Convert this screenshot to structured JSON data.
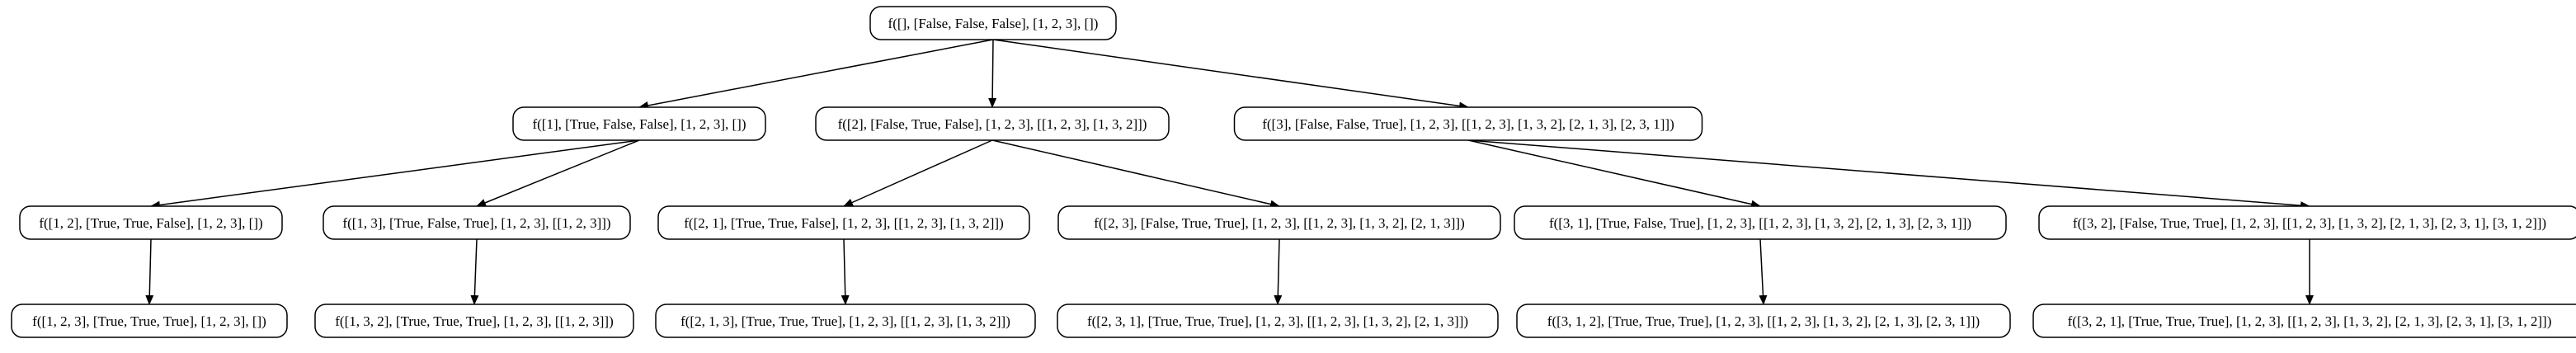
{
  "diagram": {
    "type": "tree",
    "root": "n0",
    "nodes": [
      {
        "id": "n0",
        "label": "f([], [False, False, False], [1, 2, 3], [])"
      },
      {
        "id": "n1",
        "label": "f([1], [True, False, False], [1, 2, 3], [])"
      },
      {
        "id": "n2",
        "label": "f([2], [False, True, False], [1, 2, 3], [[1, 2, 3], [1, 3, 2]])"
      },
      {
        "id": "n3",
        "label": "f([3], [False, False, True], [1, 2, 3], [[1, 2, 3], [1, 3, 2], [2, 1, 3], [2, 3, 1]])"
      },
      {
        "id": "n4",
        "label": "f([1, 2], [True, True, False], [1, 2, 3], [])"
      },
      {
        "id": "n5",
        "label": "f([1, 3], [True, False, True], [1, 2, 3], [[1, 2, 3]])"
      },
      {
        "id": "n6",
        "label": "f([2, 1], [True, True, False], [1, 2, 3], [[1, 2, 3], [1, 3, 2]])"
      },
      {
        "id": "n7",
        "label": "f([2, 3], [False, True, True], [1, 2, 3], [[1, 2, 3], [1, 3, 2], [2, 1, 3]])"
      },
      {
        "id": "n8",
        "label": "f([3, 1], [True, False, True], [1, 2, 3], [[1, 2, 3], [1, 3, 2], [2, 1, 3], [2, 3, 1]])"
      },
      {
        "id": "n9",
        "label": "f([3, 2], [False, True, True], [1, 2, 3], [[1, 2, 3], [1, 3, 2], [2, 1, 3], [2, 3, 1], [3, 1, 2]])"
      },
      {
        "id": "n10",
        "label": "f([1, 2, 3], [True, True, True], [1, 2, 3], [])"
      },
      {
        "id": "n11",
        "label": "f([1, 3, 2], [True, True, True], [1, 2, 3], [[1, 2, 3]])"
      },
      {
        "id": "n12",
        "label": "f([2, 1, 3], [True, True, True], [1, 2, 3], [[1, 2, 3], [1, 3, 2]])"
      },
      {
        "id": "n13",
        "label": "f([2, 3, 1], [True, True, True], [1, 2, 3], [[1, 2, 3], [1, 3, 2], [2, 1, 3]])"
      },
      {
        "id": "n14",
        "label": "f([3, 1, 2], [True, True, True], [1, 2, 3], [[1, 2, 3], [1, 3, 2], [2, 1, 3], [2, 3, 1]])"
      },
      {
        "id": "n15",
        "label": "f([3, 2, 1], [True, True, True], [1, 2, 3], [[1, 2, 3], [1, 3, 2], [2, 1, 3], [2, 3, 1], [3, 1, 2]])"
      }
    ],
    "edges": [
      [
        "n0",
        "n1"
      ],
      [
        "n0",
        "n2"
      ],
      [
        "n0",
        "n3"
      ],
      [
        "n1",
        "n4"
      ],
      [
        "n1",
        "n5"
      ],
      [
        "n2",
        "n6"
      ],
      [
        "n2",
        "n7"
      ],
      [
        "n3",
        "n8"
      ],
      [
        "n3",
        "n9"
      ],
      [
        "n4",
        "n10"
      ],
      [
        "n5",
        "n11"
      ],
      [
        "n6",
        "n12"
      ],
      [
        "n7",
        "n13"
      ],
      [
        "n8",
        "n14"
      ],
      [
        "n9",
        "n15"
      ]
    ],
    "colors": {
      "node_border": "#000000",
      "edge": "#000000",
      "text": "#000000",
      "background": "#ffffff"
    }
  }
}
